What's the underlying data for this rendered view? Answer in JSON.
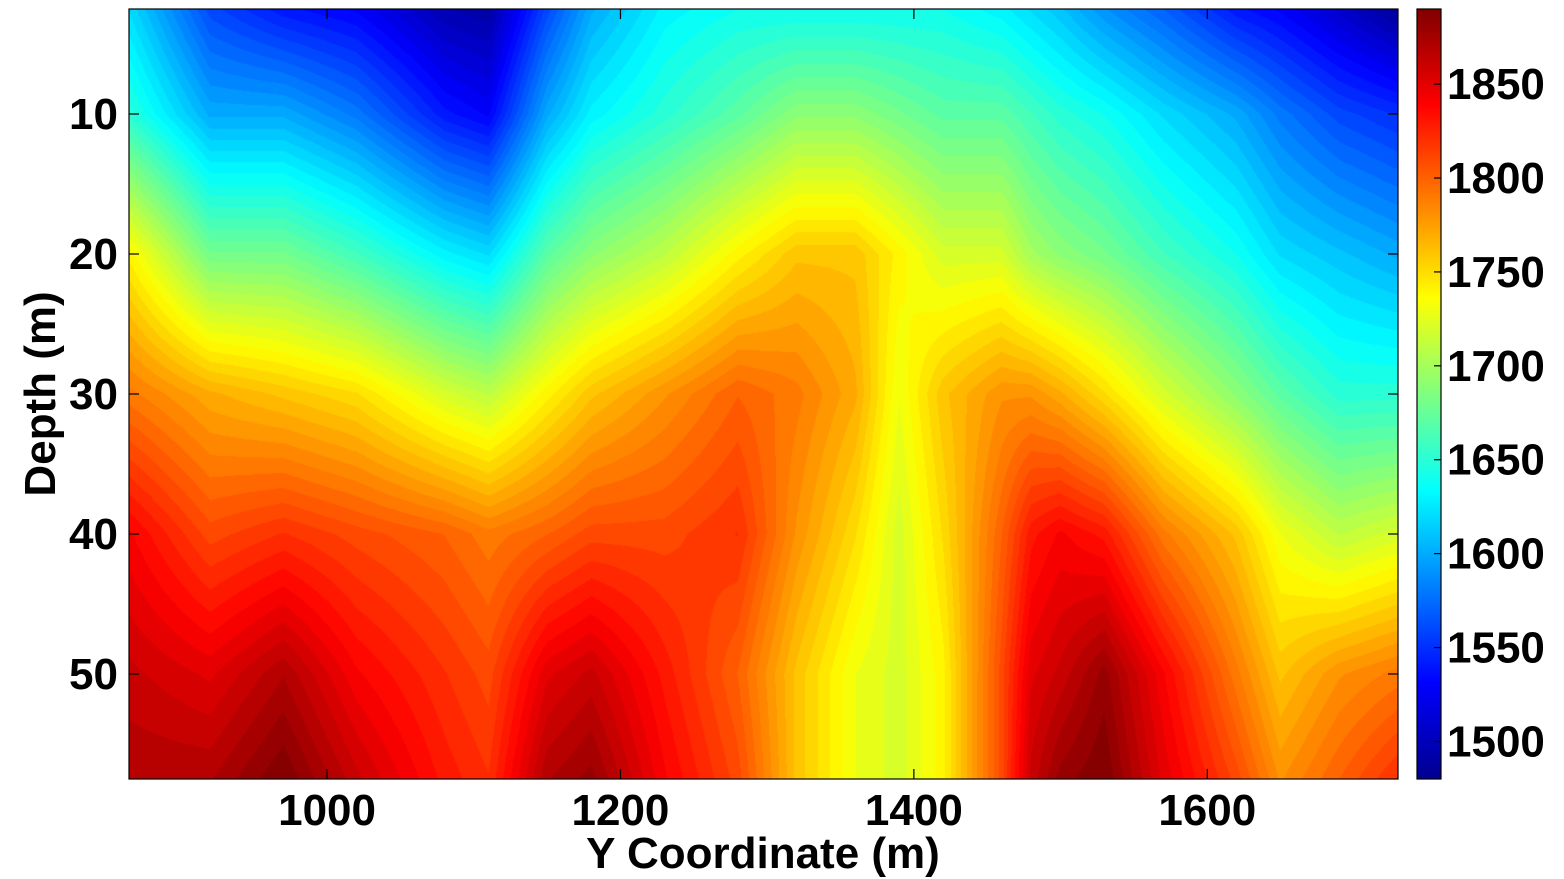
{
  "chart_data": {
    "type": "heatmap",
    "title": "",
    "xlabel": "Y Coordinate (m)",
    "ylabel": "Depth (m)",
    "xlim": [
      865,
      1730
    ],
    "ylim": [
      2.5,
      57.5
    ],
    "y_reversed": true,
    "grid": false,
    "colormap": "jet",
    "color_range": [
      1480,
      1890
    ],
    "x_ticks": [
      1000,
      1200,
      1400,
      1600
    ],
    "y_ticks": [
      10,
      20,
      30,
      40,
      50
    ],
    "colorbar_ticks": [
      1500,
      1550,
      1600,
      1650,
      1700,
      1750,
      1800,
      1850
    ],
    "x": [
      865,
      920,
      970,
      1020,
      1080,
      1110,
      1150,
      1180,
      1230,
      1280,
      1320,
      1360,
      1390,
      1420,
      1460,
      1480,
      1500,
      1530,
      1570,
      1620,
      1650,
      1690,
      1730
    ],
    "depth": [
      2.5,
      10,
      20,
      30,
      40,
      50,
      57.5
    ],
    "values": [
      [
        1620,
        1560,
        1540,
        1530,
        1500,
        1495,
        1560,
        1600,
        1630,
        1640,
        1640,
        1640,
        1640,
        1640,
        1630,
        1620,
        1610,
        1590,
        1570,
        1540,
        1530,
        1510,
        1490
      ],
      [
        1650,
        1600,
        1600,
        1580,
        1540,
        1530,
        1600,
        1630,
        1650,
        1670,
        1690,
        1690,
        1680,
        1670,
        1670,
        1660,
        1650,
        1640,
        1620,
        1600,
        1580,
        1560,
        1550
      ],
      [
        1740,
        1680,
        1680,
        1660,
        1630,
        1620,
        1670,
        1690,
        1710,
        1740,
        1760,
        1760,
        1740,
        1720,
        1720,
        1700,
        1690,
        1680,
        1660,
        1640,
        1620,
        1610,
        1600
      ],
      [
        1790,
        1770,
        1760,
        1750,
        1720,
        1710,
        1740,
        1760,
        1780,
        1800,
        1790,
        1770,
        1730,
        1760,
        1780,
        1780,
        1770,
        1750,
        1720,
        1690,
        1670,
        1650,
        1650
      ],
      [
        1840,
        1810,
        1820,
        1810,
        1800,
        1790,
        1800,
        1810,
        1810,
        1820,
        1780,
        1750,
        1720,
        1750,
        1800,
        1830,
        1840,
        1830,
        1790,
        1760,
        1730,
        1710,
        1720
      ],
      [
        1860,
        1850,
        1870,
        1840,
        1820,
        1810,
        1850,
        1860,
        1830,
        1800,
        1760,
        1730,
        1720,
        1740,
        1810,
        1850,
        1860,
        1880,
        1840,
        1790,
        1760,
        1780,
        1790
      ],
      [
        1870,
        1870,
        1890,
        1860,
        1830,
        1820,
        1870,
        1880,
        1840,
        1810,
        1760,
        1730,
        1720,
        1740,
        1810,
        1860,
        1880,
        1890,
        1850,
        1810,
        1780,
        1800,
        1820
      ]
    ]
  }
}
